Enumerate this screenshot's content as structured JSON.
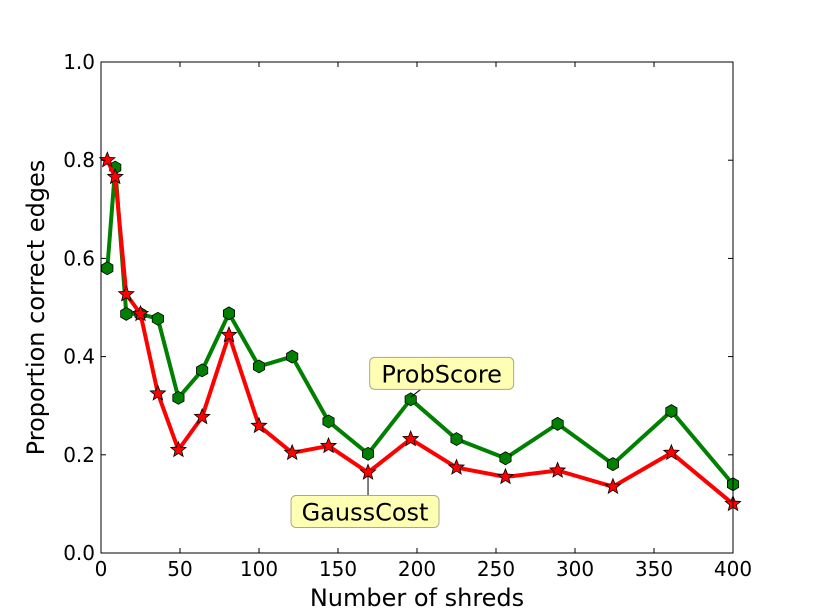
{
  "chart_data": {
    "type": "line",
    "xlabel": "Number of shreds",
    "ylabel": "Proportion correct edges",
    "xlim": [
      0,
      400
    ],
    "ylim": [
      0.0,
      1.0
    ],
    "x_ticks": [
      "0",
      "50",
      "100",
      "150",
      "200",
      "250",
      "300",
      "350",
      "400"
    ],
    "y_ticks": [
      "0.0",
      "0.2",
      "0.4",
      "0.6",
      "0.8",
      "1.0"
    ],
    "grid": false,
    "x": [
      4,
      9,
      16,
      25,
      36,
      49,
      64,
      81,
      100,
      121,
      144,
      169,
      196,
      225,
      256,
      289,
      324,
      361,
      400
    ],
    "series": [
      {
        "name": "ProbScore",
        "color": "#008000",
        "marker": "hexagon",
        "values": [
          0.58,
          0.785,
          0.487,
          0.487,
          0.477,
          0.316,
          0.372,
          0.488,
          0.38,
          0.4,
          0.268,
          0.202,
          0.313,
          0.232,
          0.193,
          0.263,
          0.181,
          0.289,
          0.14
        ]
      },
      {
        "name": "GaussCost",
        "color": "#ff0000",
        "marker": "star",
        "values": [
          0.8,
          0.766,
          0.527,
          0.487,
          0.325,
          0.21,
          0.277,
          0.444,
          0.259,
          0.204,
          0.218,
          0.164,
          0.232,
          0.174,
          0.155,
          0.168,
          0.135,
          0.204,
          0.1
        ]
      }
    ],
    "annotations": [
      {
        "text": "ProbScore",
        "series": "ProbScore",
        "x": 196,
        "y": 0.313
      },
      {
        "text": "GaussCost",
        "series": "GaussCost",
        "x": 169,
        "y": 0.164
      }
    ]
  }
}
